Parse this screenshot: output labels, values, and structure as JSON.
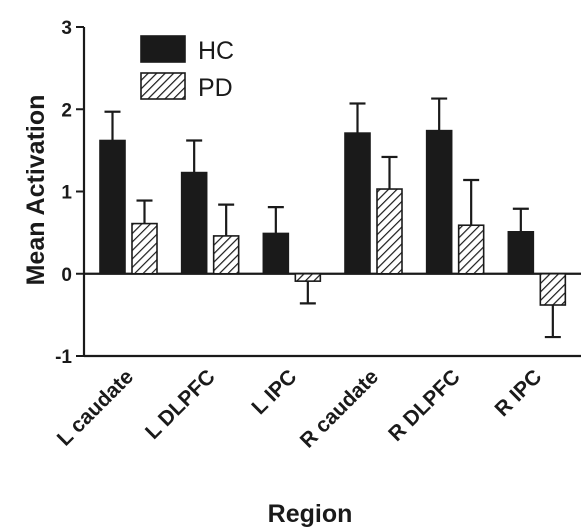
{
  "chart_data": {
    "type": "bar",
    "title": "",
    "xlabel": "Region",
    "ylabel": "Mean Activation",
    "ylim": [
      -1,
      3
    ],
    "yticks": [
      -1,
      0,
      1,
      2,
      3
    ],
    "categories": [
      "L caudate",
      "L DLPFC",
      "L IPC",
      "R caudate",
      "R DLPFC",
      "R IPC"
    ],
    "series": [
      {
        "name": "HC",
        "fill": "solid",
        "color": "#1a1a1a",
        "values": [
          1.62,
          1.23,
          0.49,
          1.71,
          1.74,
          0.51
        ],
        "errors": [
          0.35,
          0.39,
          0.32,
          0.36,
          0.39,
          0.28
        ]
      },
      {
        "name": "PD",
        "fill": "hatched",
        "color": "#1a1a1a",
        "values": [
          0.61,
          0.46,
          -0.09,
          1.03,
          0.59,
          -0.38
        ],
        "errors": [
          0.28,
          0.38,
          0.27,
          0.39,
          0.55,
          0.39
        ]
      }
    ],
    "legend": "top-left",
    "grid": false
  }
}
